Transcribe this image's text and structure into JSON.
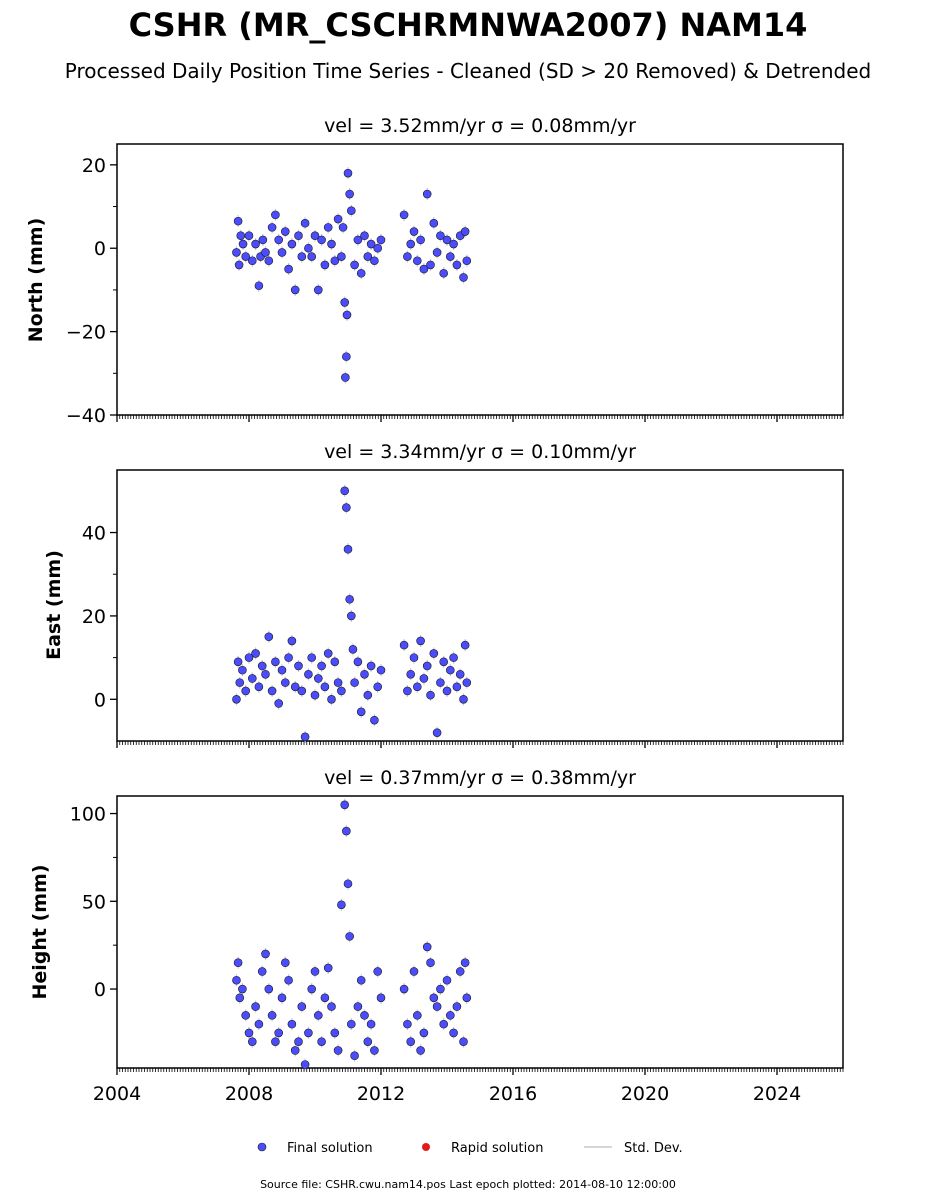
{
  "header": {
    "title": "CSHR (MR_CSCHRMNWA2007) NAM14",
    "subtitle": "Processed Daily Position Time Series - Cleaned (SD > 20 Removed) & Detrended"
  },
  "legend": {
    "final_label": "Final solution",
    "rapid_label": "Rapid solution",
    "std_label": "Std. Dev."
  },
  "footer": {
    "source_text": "Source file: CSHR.cwu.nam14.pos  Last epoch plotted: 2014-08-10 12:00:00"
  },
  "colors": {
    "final": "#4c4cff",
    "rapid": "#e31a1c",
    "std_dev": "#c8c8c8",
    "marker_edge": "#1a1a1a"
  },
  "chart_data": [
    {
      "type": "scatter",
      "title": "vel = 3.52mm/yr   σ = 0.08mm/yr",
      "ylabel": "North (mm)",
      "xlim": [
        2004,
        2026
      ],
      "ylim": [
        -40,
        25
      ],
      "yticks": [
        -40,
        -20,
        0,
        20
      ],
      "yticklabels": [
        "−40",
        "−20",
        "0",
        "20"
      ],
      "xticks": [
        2004,
        2008,
        2012,
        2016,
        2020,
        2024
      ],
      "show_xticklabels": false,
      "grid": false,
      "series": [
        {
          "name": "Final solution",
          "x": [
            2007.62,
            2007.67,
            2007.7,
            2007.75,
            2007.82,
            2007.9,
            2008.0,
            2008.1,
            2008.2,
            2008.3,
            2008.35,
            2008.42,
            2008.5,
            2008.6,
            2008.7,
            2008.8,
            2008.9,
            2009.0,
            2009.1,
            2009.2,
            2009.3,
            2009.4,
            2009.5,
            2009.6,
            2009.7,
            2009.8,
            2009.9,
            2010.0,
            2010.1,
            2010.2,
            2010.3,
            2010.4,
            2010.5,
            2010.6,
            2010.7,
            2010.8,
            2010.85,
            2010.9,
            2010.92,
            2010.95,
            2010.97,
            2011.0,
            2011.05,
            2011.1,
            2011.2,
            2011.3,
            2011.4,
            2011.5,
            2011.6,
            2011.7,
            2011.8,
            2011.9,
            2012.0,
            2012.7,
            2012.8,
            2012.9,
            2013.0,
            2013.1,
            2013.2,
            2013.3,
            2013.4,
            2013.5,
            2013.6,
            2013.7,
            2013.8,
            2013.9,
            2014.0,
            2014.1,
            2014.2,
            2014.3,
            2014.4,
            2014.5,
            2014.55,
            2014.6
          ],
          "y": [
            -1,
            6.5,
            -4,
            3,
            1,
            -2,
            3,
            -3,
            1,
            -9,
            -2,
            2,
            -1,
            -3,
            5,
            8,
            2,
            -1,
            4,
            -5,
            1,
            -10,
            3,
            -2,
            6,
            0,
            -2,
            3,
            -10,
            2,
            -4,
            5,
            1,
            -3,
            7,
            -2,
            5,
            -13,
            -31,
            -26,
            -16,
            18,
            13,
            9,
            -4,
            2,
            -6,
            3,
            -2,
            1,
            -3,
            0,
            2,
            8,
            -2,
            1,
            4,
            -3,
            2,
            -5,
            13,
            -4,
            6,
            -1,
            3,
            -6,
            2,
            -2,
            1,
            -4,
            3,
            -7,
            4,
            -3
          ]
        },
        {
          "name": "Rapid solution",
          "x": [],
          "y": []
        }
      ]
    },
    {
      "type": "scatter",
      "title": "vel = 3.34mm/yr   σ = 0.10mm/yr",
      "ylabel": "East (mm)",
      "xlim": [
        2004,
        2026
      ],
      "ylim": [
        -10,
        55
      ],
      "yticks": [
        0,
        20,
        40
      ],
      "yticklabels": [
        "0",
        "20",
        "40"
      ],
      "xticks": [
        2004,
        2008,
        2012,
        2016,
        2020,
        2024
      ],
      "show_xticklabels": false,
      "grid": false,
      "series": [
        {
          "name": "Final solution",
          "x": [
            2007.62,
            2007.67,
            2007.72,
            2007.8,
            2007.9,
            2008.0,
            2008.1,
            2008.2,
            2008.3,
            2008.4,
            2008.5,
            2008.6,
            2008.7,
            2008.8,
            2008.9,
            2009.0,
            2009.1,
            2009.2,
            2009.3,
            2009.4,
            2009.5,
            2009.6,
            2009.7,
            2009.8,
            2009.9,
            2010.0,
            2010.1,
            2010.2,
            2010.3,
            2010.4,
            2010.5,
            2010.6,
            2010.7,
            2010.8,
            2010.9,
            2010.95,
            2011.0,
            2011.05,
            2011.1,
            2011.15,
            2011.2,
            2011.3,
            2011.4,
            2011.5,
            2011.6,
            2011.7,
            2011.8,
            2011.9,
            2012.0,
            2012.7,
            2012.8,
            2012.9,
            2013.0,
            2013.1,
            2013.2,
            2013.3,
            2013.4,
            2013.5,
            2013.6,
            2013.7,
            2013.8,
            2013.9,
            2014.0,
            2014.1,
            2014.2,
            2014.3,
            2014.4,
            2014.5,
            2014.55,
            2014.6
          ],
          "y": [
            0,
            9,
            4,
            7,
            2,
            10,
            5,
            11,
            3,
            8,
            6,
            15,
            2,
            9,
            -1,
            7,
            4,
            10,
            14,
            3,
            8,
            2,
            -9,
            6,
            10,
            1,
            5,
            8,
            3,
            11,
            0,
            9,
            4,
            2,
            50,
            46,
            36,
            24,
            20,
            12,
            4,
            9,
            -3,
            6,
            1,
            8,
            -5,
            3,
            7,
            13,
            2,
            6,
            10,
            3,
            14,
            5,
            8,
            1,
            11,
            -8,
            4,
            9,
            2,
            7,
            10,
            3,
            6,
            0,
            13,
            4
          ]
        },
        {
          "name": "Rapid solution",
          "x": [],
          "y": []
        }
      ]
    },
    {
      "type": "scatter",
      "title": "vel = 0.37mm/yr   σ = 0.38mm/yr",
      "ylabel": "Height (mm)",
      "xlim": [
        2004,
        2026
      ],
      "ylim": [
        -45,
        110
      ],
      "yticks": [
        0,
        50,
        100
      ],
      "yticklabels": [
        "0",
        "50",
        "100"
      ],
      "xticks": [
        2004,
        2008,
        2012,
        2016,
        2020,
        2024
      ],
      "xticklabels": [
        "2004",
        "2008",
        "2012",
        "2016",
        "2020",
        "2024"
      ],
      "show_xticklabels": true,
      "grid": false,
      "series": [
        {
          "name": "Final solution",
          "x": [
            2007.62,
            2007.67,
            2007.72,
            2007.8,
            2007.9,
            2008.0,
            2008.1,
            2008.2,
            2008.3,
            2008.4,
            2008.5,
            2008.6,
            2008.7,
            2008.8,
            2008.9,
            2009.0,
            2009.1,
            2009.2,
            2009.3,
            2009.4,
            2009.5,
            2009.6,
            2009.7,
            2009.8,
            2009.9,
            2010.0,
            2010.1,
            2010.2,
            2010.3,
            2010.4,
            2010.5,
            2010.6,
            2010.7,
            2010.8,
            2010.9,
            2010.95,
            2011.0,
            2011.05,
            2011.1,
            2011.2,
            2011.3,
            2011.4,
            2011.5,
            2011.6,
            2011.7,
            2011.8,
            2011.9,
            2012.0,
            2012.7,
            2012.8,
            2012.9,
            2013.0,
            2013.1,
            2013.2,
            2013.3,
            2013.4,
            2013.5,
            2013.6,
            2013.7,
            2013.8,
            2013.9,
            2014.0,
            2014.1,
            2014.2,
            2014.3,
            2014.4,
            2014.5,
            2014.55,
            2014.6
          ],
          "y": [
            5,
            15,
            -5,
            0,
            -15,
            -25,
            -30,
            -10,
            -20,
            10,
            20,
            0,
            -15,
            -30,
            -25,
            -5,
            15,
            5,
            -20,
            -35,
            -30,
            -10,
            -43,
            -25,
            0,
            10,
            -15,
            -30,
            -5,
            12,
            -10,
            -25,
            -35,
            48,
            105,
            90,
            60,
            30,
            -20,
            -38,
            -10,
            5,
            -15,
            -30,
            -20,
            -35,
            10,
            -5,
            0,
            -20,
            -30,
            10,
            -15,
            -35,
            -25,
            24,
            15,
            -5,
            -10,
            0,
            -20,
            5,
            -15,
            -25,
            -10,
            10,
            -30,
            15,
            -5
          ]
        },
        {
          "name": "Rapid solution",
          "x": [],
          "y": []
        }
      ]
    }
  ]
}
